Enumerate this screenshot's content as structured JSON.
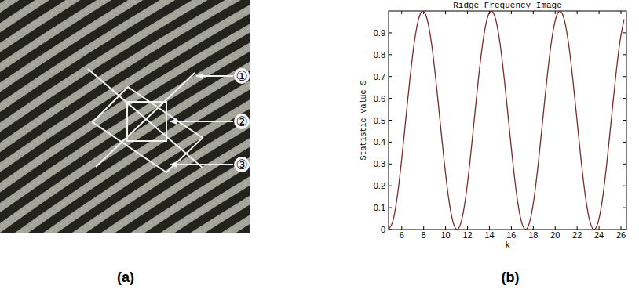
{
  "figure_a": {
    "callouts": [
      "①",
      "②",
      "③"
    ]
  },
  "panel_labels": [
    "(a)",
    "(b)"
  ],
  "chart_data": {
    "type": "line",
    "title": "Ridge Frequency Image",
    "x_label": "k",
    "y_label": "Statistic value S",
    "color": "#7a2a2a",
    "x": [
      4.8,
      5.19,
      5.58,
      5.97,
      6.36,
      6.75,
      7.14,
      7.53,
      7.93,
      8.32,
      8.71,
      9.1,
      9.49,
      9.88,
      10.27,
      10.66,
      11.05,
      11.44,
      11.83,
      12.22,
      12.61,
      13,
      13.39,
      13.78,
      14.18,
      14.57,
      14.96,
      15.35,
      15.74,
      16.13,
      16.52,
      16.91,
      17.3,
      17.69,
      18.08,
      18.47,
      18.86,
      19.25,
      19.64,
      20.03,
      20.43,
      20.82,
      21.21,
      21.6,
      21.99,
      22.38,
      22.77,
      23.16,
      23.55,
      23.94,
      24.33,
      24.72,
      25.11,
      25.5,
      25.89,
      26.28
    ],
    "values": [
      0,
      0.038,
      0.146,
      0.309,
      0.5,
      0.691,
      0.854,
      0.962,
      1,
      0.962,
      0.854,
      0.691,
      0.5,
      0.309,
      0.146,
      0.038,
      0,
      0.038,
      0.146,
      0.309,
      0.5,
      0.691,
      0.854,
      0.962,
      1,
      0.962,
      0.854,
      0.691,
      0.5,
      0.309,
      0.146,
      0.038,
      0,
      0.038,
      0.146,
      0.309,
      0.5,
      0.691,
      0.854,
      0.962,
      1,
      0.962,
      0.854,
      0.691,
      0.5,
      0.309,
      0.146,
      0.038,
      0,
      0.038,
      0.146,
      0.309,
      0.5,
      0.691,
      0.854,
      0.962
    ],
    "xlim": [
      4.8,
      26.5
    ],
    "ylim": [
      0,
      1
    ],
    "xticks": [
      6,
      8,
      10,
      12,
      14,
      16,
      18,
      20,
      22,
      24,
      26
    ],
    "yticks": [
      0,
      0.1,
      0.2,
      0.3,
      0.4,
      0.5,
      0.6,
      0.7,
      0.8,
      0.9
    ],
    "grid": false
  }
}
